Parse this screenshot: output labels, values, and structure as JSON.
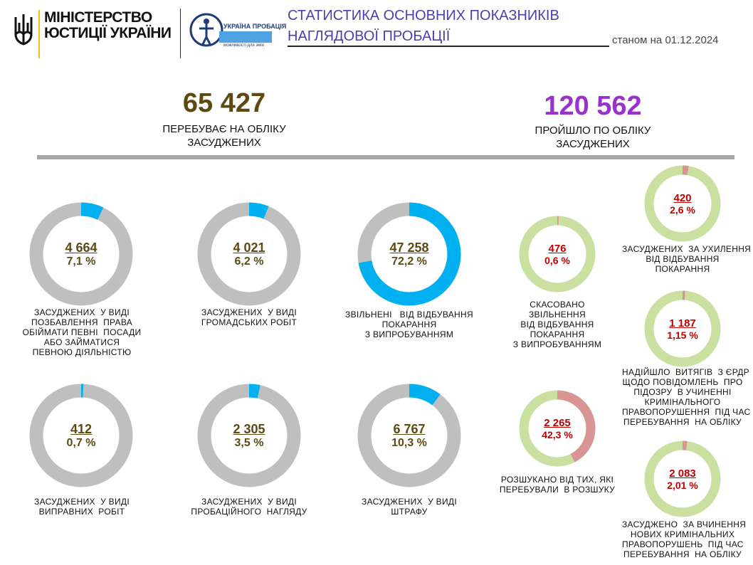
{
  "header": {
    "ministry_line1": "МІНІСТЕРСТВО",
    "ministry_line2": "ЮСТИЦІЇ УКРАЇНИ",
    "probation_logo_text": "УКРАЇНА ПРОБАЦІЯ",
    "probation_logo_sub": "можливості для змін",
    "title": "СТАТИСТИКА ОСНОВНИХ ПОКАЗНИКІВ\nНАГЛЯДОВОЇ ПРОБАЦІЇ",
    "as_of": "станом на 01.12.2024",
    "colors": {
      "title": "#4a3fb0",
      "accent_yellow": "#f5c400"
    }
  },
  "totals": {
    "registered": {
      "value": "65 427",
      "label": "ПЕРЕБУВАЄ НА ОБЛІКУ\nЗАСУДЖЕНИХ",
      "color": "#5c4a12"
    },
    "passed": {
      "value": "120 562",
      "label": "ПРОЙШЛО ПО ОБЛІКУ\nЗАСУДЖЕНИХ",
      "color": "#9b30d0"
    }
  },
  "left_donuts": [
    {
      "value": "4 664",
      "percent": "7,1 %",
      "fraction": 0.071,
      "caption": "ЗАСУДЖЕНИХ  У ВИДІ\nПОЗБАВЛЕННЯ  ПРАВА\nОБІЙМАТИ ПЕВНІ  ПОСАДИ\nАБО ЗАЙМАТИСЯ\nПЕВНОЮ ДІЯЛЬНІСТЮ"
    },
    {
      "value": "4 021",
      "percent": "6,2 %",
      "fraction": 0.062,
      "caption": "ЗАСУДЖЕНИХ  У ВИДІ\nГРОМАДСЬКИХ РОБІТ"
    },
    {
      "value": "47 258",
      "percent": "72,2 %",
      "fraction": 0.722,
      "caption": "ЗВІЛЬНЕНІ   ВІД ВІДБУВАННЯ\nПОКАРАННЯ\nЗ ВИПРОБУВАННЯМ"
    },
    {
      "value": "412",
      "percent": "0,7 %",
      "fraction": 0.007,
      "caption": "ЗАСУДЖЕНИХ  У ВИДІ\nВИПРАВНИХ  РОБІТ"
    },
    {
      "value": "2 305",
      "percent": "3,5 %",
      "fraction": 0.035,
      "caption": "ЗАСУДЖЕНИХ  У ВИДІ\nПРОБАЦІЙНОГО  НАГЛЯДУ"
    },
    {
      "value": "6 767",
      "percent": "10,3 %",
      "fraction": 0.103,
      "caption": "ЗАСУДЖЕНИХ  У ВИДІ\nШТРАФУ"
    }
  ],
  "right_donuts": [
    {
      "value": "476",
      "percent": "0,6 %",
      "fraction": 0.006,
      "caption": "СКАСОВАНО\nЗВІЛЬНЕННЯ\nВІД ВІДБУВАННЯ\nПОКАРАННЯ\nЗ ВИПРОБУВАННЯМ"
    },
    {
      "value": "2 265",
      "percent": "42,3 %",
      "fraction": 0.423,
      "caption": "РОЗШУКАНО ВІД ТИХ, ЯКІ\nПЕРЕБУВАЛИ  В РОЗШУКУ"
    },
    {
      "value": "420",
      "percent": "2,6 %",
      "fraction": 0.026,
      "caption": "ЗАСУДЖЕНИХ  ЗА УХИЛЕННЯ\nВІД ВІДБУВАННЯ\nПОКАРАННЯ"
    },
    {
      "value": "1 187",
      "percent": "1,15 %",
      "fraction": 0.0115,
      "caption": "НАДІЙШЛО  ВИТЯГІВ  З ЄРДР\nЩОДО ПОВІДОМЛЕНЬ  ПРО\nПІДОЗРУ  В УЧИНЕННІ\nКРИМІНАЛЬНОГО\nПРАВОПОРУШЕННЯ  ПІД ЧАС\nПЕРЕБУВАННЯ  НА ОБЛІКУ"
    },
    {
      "value": "2 083",
      "percent": "2,01 %",
      "fraction": 0.0201,
      "caption": "ЗАСУДЖЕНО  ЗА ВЧИНЕННЯ\nНОВИХ КРИМІНАЛЬНИХ\nПРАВОПОРУШЕНЬ  ПІД ЧАС\nПЕРЕБУВАННЯ  НА ОБЛІКУ"
    }
  ],
  "colors": {
    "left_track": "#bfbfbf",
    "left_fill": "#00b0f0",
    "left_text": "#5c4a12",
    "right_track": "#c9e0a0",
    "right_fill": "#d99594",
    "right_text": "#c00000"
  }
}
